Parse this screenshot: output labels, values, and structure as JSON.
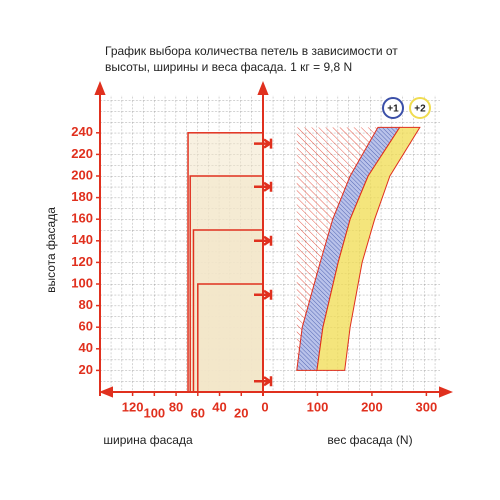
{
  "chart_data": {
    "type": "nomogram",
    "title": [
      "График выбора количества петель в зависимости от",
      "высоты, ширины и веса фасада. 1 кг = 9,8 N"
    ],
    "ylabel": "высота фасада",
    "xlabel_left": "ширина фасада",
    "xlabel_right": "вес фасада (N)",
    "ylim": [
      0,
      275
    ],
    "yticks": [
      20,
      40,
      60,
      80,
      100,
      120,
      140,
      160,
      180,
      200,
      220,
      240
    ],
    "xlim_left": [
      0,
      150
    ],
    "xticks_left": [
      120,
      100,
      80,
      60,
      40,
      20
    ],
    "xlim_right": [
      0,
      325
    ],
    "xticks_right": [
      0,
      100,
      200,
      300
    ],
    "width_steps": {
      "heights": [
        240,
        200,
        150,
        100
      ],
      "widths": [
        69,
        67,
        64,
        60
      ],
      "color": "#f3e6c8"
    },
    "hinges": [
      230,
      190,
      140,
      90,
      10
    ],
    "series": [
      {
        "name": "+1",
        "color": "#3a4fa8",
        "heights": [
          20,
          60,
          120,
          160,
          200,
          245
        ],
        "lower": [
          62,
          72,
          105,
          128,
          160,
          211
        ],
        "upper": [
          99,
          110,
          138,
          160,
          193,
          251
        ]
      },
      {
        "name": "+2",
        "color": "#f0dc50",
        "heights": [
          20,
          60,
          120,
          160,
          200,
          245
        ],
        "lower": [
          99,
          110,
          138,
          160,
          193,
          251
        ],
        "upper": [
          150,
          160,
          182,
          205,
          233,
          288
        ]
      }
    ]
  }
}
